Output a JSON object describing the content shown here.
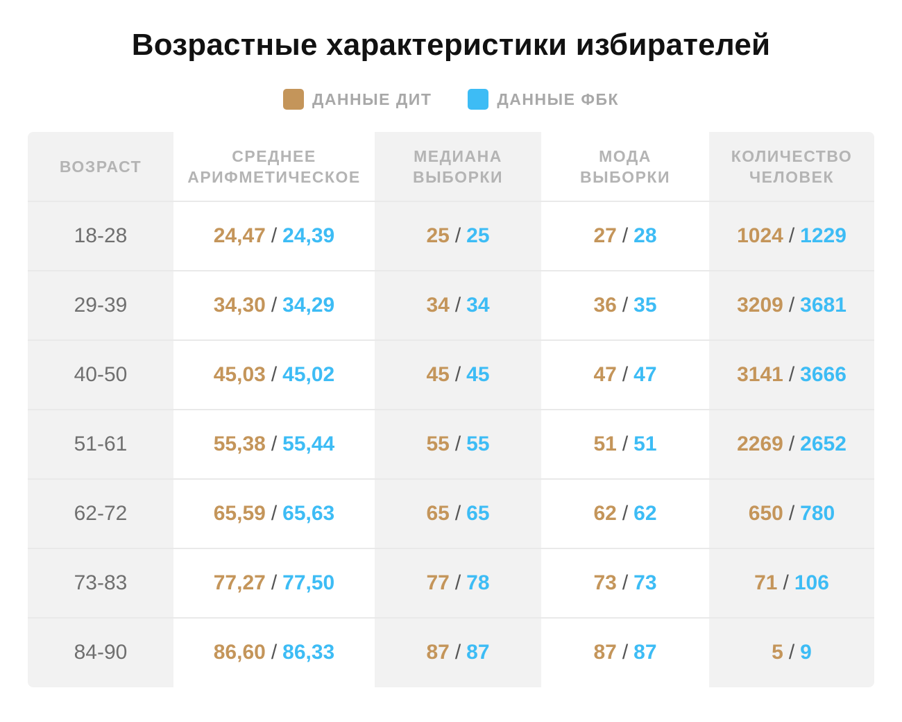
{
  "title": "Возрастные характеристики избирателей",
  "legend": [
    {
      "label": "ДАННЫЕ ДИТ",
      "color": "#c4955a"
    },
    {
      "label": "ДАННЫЕ ФБК",
      "color": "#3dbcf5"
    }
  ],
  "colors": {
    "dit": "#c4955a",
    "fbk": "#3dbcf5"
  },
  "chart_data": {
    "type": "table",
    "title": "Возрастные характеристики избирателей",
    "series": [
      {
        "name": "ДАННЫЕ ДИТ"
      },
      {
        "name": "ДАННЫЕ ФБК"
      }
    ],
    "columns": [
      {
        "line1": "ВОЗРАСТ",
        "line2": ""
      },
      {
        "line1": "СРЕДНЕЕ",
        "line2": "АРИФМЕТИЧЕСКОЕ"
      },
      {
        "line1": "МЕДИАНА",
        "line2": "ВЫБОРКИ"
      },
      {
        "line1": "МОДА",
        "line2": "ВЫБОРКИ"
      },
      {
        "line1": "КОЛИЧЕСТВО",
        "line2": "ЧЕЛОВЕК"
      }
    ],
    "rows": [
      {
        "age": "18-28",
        "values": [
          [
            "24,47",
            "24,39"
          ],
          [
            "25",
            "25"
          ],
          [
            "27",
            "28"
          ],
          [
            "1024",
            "1229"
          ]
        ]
      },
      {
        "age": "29-39",
        "values": [
          [
            "34,30",
            "34,29"
          ],
          [
            "34",
            "34"
          ],
          [
            "36",
            "35"
          ],
          [
            "3209",
            "3681"
          ]
        ]
      },
      {
        "age": "40-50",
        "values": [
          [
            "45,03",
            "45,02"
          ],
          [
            "45",
            "45"
          ],
          [
            "47",
            "47"
          ],
          [
            "3141",
            "3666"
          ]
        ]
      },
      {
        "age": "51-61",
        "values": [
          [
            "55,38",
            "55,44"
          ],
          [
            "55",
            "55"
          ],
          [
            "51",
            "51"
          ],
          [
            "2269",
            "2652"
          ]
        ]
      },
      {
        "age": "62-72",
        "values": [
          [
            "65,59",
            "65,63"
          ],
          [
            "65",
            "65"
          ],
          [
            "62",
            "62"
          ],
          [
            "650",
            "780"
          ]
        ]
      },
      {
        "age": "73-83",
        "values": [
          [
            "77,27",
            "77,50"
          ],
          [
            "77",
            "78"
          ],
          [
            "73",
            "73"
          ],
          [
            "71",
            "106"
          ]
        ]
      },
      {
        "age": "84-90",
        "values": [
          [
            "86,60",
            "86,33"
          ],
          [
            "87",
            "87"
          ],
          [
            "87",
            "87"
          ],
          [
            "5",
            "9"
          ]
        ]
      }
    ],
    "separator": "/"
  }
}
